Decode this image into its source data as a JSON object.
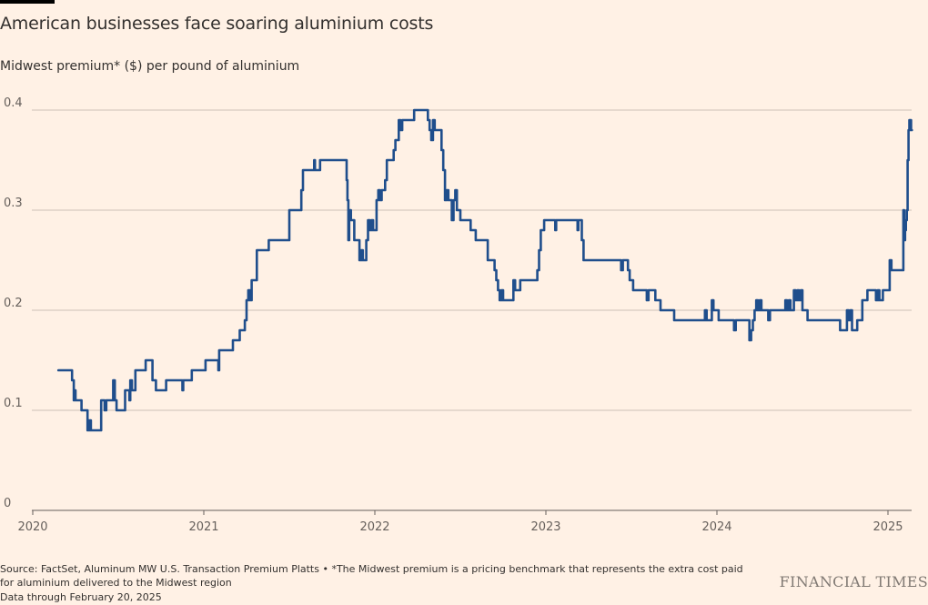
{
  "title": "American businesses face soaring aluminium costs",
  "subtitle": "Midwest premium* ($) per pound of aluminium",
  "source": "Source: FactSet, Aluminum MW U.S. Transaction Premium Platts • *The Midwest premium is a pricing benchmark that represents the extra cost paid for aluminium delivered to the Midwest region",
  "data_through": "Data through February 20, 2025",
  "brand": "FINANCIAL TIMES",
  "colors": {
    "background": "#fff1e5",
    "line": "#1f4e8c",
    "grid": "#ccc1b7",
    "axis": "#66605c"
  },
  "chart_data": {
    "type": "line",
    "xlim": [
      2020.0,
      2025.15
    ],
    "ylim": [
      0,
      0.4
    ],
    "x_ticks": [
      "2020",
      "2021",
      "2022",
      "2023",
      "2024",
      "2025"
    ],
    "y_ticks": [
      "0",
      "0.1",
      "0.2",
      "0.3",
      "0.4"
    ],
    "grid": true,
    "series": [
      {
        "points": [
          [
            2020.15,
            0.14
          ],
          [
            2020.22,
            0.14
          ],
          [
            2020.23,
            0.13
          ],
          [
            2020.24,
            0.11
          ],
          [
            2020.245,
            0.12
          ],
          [
            2020.25,
            0.11
          ],
          [
            2020.28,
            0.11
          ],
          [
            2020.285,
            0.1
          ],
          [
            2020.31,
            0.1
          ],
          [
            2020.32,
            0.08
          ],
          [
            2020.325,
            0.09
          ],
          [
            2020.33,
            0.08
          ],
          [
            2020.335,
            0.09
          ],
          [
            2020.34,
            0.08
          ],
          [
            2020.39,
            0.08
          ],
          [
            2020.4,
            0.11
          ],
          [
            2020.42,
            0.1
          ],
          [
            2020.43,
            0.11
          ],
          [
            2020.46,
            0.11
          ],
          [
            2020.47,
            0.13
          ],
          [
            2020.48,
            0.11
          ],
          [
            2020.49,
            0.1
          ],
          [
            2020.53,
            0.1
          ],
          [
            2020.54,
            0.12
          ],
          [
            2020.56,
            0.12
          ],
          [
            2020.565,
            0.11
          ],
          [
            2020.57,
            0.13
          ],
          [
            2020.58,
            0.12
          ],
          [
            2020.6,
            0.14
          ],
          [
            2020.65,
            0.14
          ],
          [
            2020.66,
            0.15
          ],
          [
            2020.69,
            0.15
          ],
          [
            2020.7,
            0.13
          ],
          [
            2020.72,
            0.12
          ],
          [
            2020.77,
            0.12
          ],
          [
            2020.78,
            0.13
          ],
          [
            2020.87,
            0.13
          ],
          [
            2020.875,
            0.12
          ],
          [
            2020.88,
            0.13
          ],
          [
            2020.92,
            0.13
          ],
          [
            2020.93,
            0.14
          ],
          [
            2021.0,
            0.14
          ],
          [
            2021.01,
            0.15
          ],
          [
            2021.08,
            0.15
          ],
          [
            2021.085,
            0.14
          ],
          [
            2021.09,
            0.16
          ],
          [
            2021.16,
            0.16
          ],
          [
            2021.17,
            0.17
          ],
          [
            2021.2,
            0.17
          ],
          [
            2021.21,
            0.18
          ],
          [
            2021.23,
            0.18
          ],
          [
            2021.24,
            0.19
          ],
          [
            2021.25,
            0.21
          ],
          [
            2021.26,
            0.22
          ],
          [
            2021.27,
            0.21
          ],
          [
            2021.28,
            0.23
          ],
          [
            2021.3,
            0.23
          ],
          [
            2021.31,
            0.26
          ],
          [
            2021.37,
            0.26
          ],
          [
            2021.38,
            0.27
          ],
          [
            2021.49,
            0.27
          ],
          [
            2021.5,
            0.3
          ],
          [
            2021.56,
            0.3
          ],
          [
            2021.57,
            0.32
          ],
          [
            2021.58,
            0.34
          ],
          [
            2021.64,
            0.34
          ],
          [
            2021.645,
            0.35
          ],
          [
            2021.65,
            0.34
          ],
          [
            2021.67,
            0.34
          ],
          [
            2021.68,
            0.35
          ],
          [
            2021.83,
            0.35
          ],
          [
            2021.835,
            0.33
          ],
          [
            2021.84,
            0.31
          ],
          [
            2021.845,
            0.27
          ],
          [
            2021.85,
            0.3
          ],
          [
            2021.86,
            0.29
          ],
          [
            2021.87,
            0.29
          ],
          [
            2021.88,
            0.27
          ],
          [
            2021.9,
            0.27
          ],
          [
            2021.91,
            0.25
          ],
          [
            2021.92,
            0.26
          ],
          [
            2021.93,
            0.25
          ],
          [
            2021.94,
            0.25
          ],
          [
            2021.95,
            0.27
          ],
          [
            2021.96,
            0.29
          ],
          [
            2021.97,
            0.28
          ],
          [
            2021.98,
            0.29
          ],
          [
            2021.99,
            0.28
          ],
          [
            2022.0,
            0.28
          ],
          [
            2022.01,
            0.31
          ],
          [
            2022.02,
            0.32
          ],
          [
            2022.03,
            0.31
          ],
          [
            2022.04,
            0.32
          ],
          [
            2022.05,
            0.32
          ],
          [
            2022.06,
            0.33
          ],
          [
            2022.07,
            0.35
          ],
          [
            2022.1,
            0.35
          ],
          [
            2022.11,
            0.36
          ],
          [
            2022.12,
            0.37
          ],
          [
            2022.13,
            0.37
          ],
          [
            2022.14,
            0.39
          ],
          [
            2022.15,
            0.38
          ],
          [
            2022.16,
            0.39
          ],
          [
            2022.22,
            0.39
          ],
          [
            2022.23,
            0.4
          ],
          [
            2022.3,
            0.4
          ],
          [
            2022.31,
            0.39
          ],
          [
            2022.32,
            0.38
          ],
          [
            2022.33,
            0.37
          ],
          [
            2022.34,
            0.39
          ],
          [
            2022.35,
            0.38
          ],
          [
            2022.38,
            0.38
          ],
          [
            2022.39,
            0.36
          ],
          [
            2022.4,
            0.34
          ],
          [
            2022.41,
            0.31
          ],
          [
            2022.42,
            0.32
          ],
          [
            2022.43,
            0.31
          ],
          [
            2022.44,
            0.31
          ],
          [
            2022.45,
            0.29
          ],
          [
            2022.46,
            0.31
          ],
          [
            2022.47,
            0.32
          ],
          [
            2022.48,
            0.3
          ],
          [
            2022.49,
            0.3
          ],
          [
            2022.5,
            0.29
          ],
          [
            2022.55,
            0.29
          ],
          [
            2022.56,
            0.28
          ],
          [
            2022.58,
            0.28
          ],
          [
            2022.59,
            0.27
          ],
          [
            2022.65,
            0.27
          ],
          [
            2022.66,
            0.25
          ],
          [
            2022.69,
            0.25
          ],
          [
            2022.7,
            0.24
          ],
          [
            2022.71,
            0.23
          ],
          [
            2022.72,
            0.22
          ],
          [
            2022.73,
            0.21
          ],
          [
            2022.74,
            0.22
          ],
          [
            2022.75,
            0.21
          ],
          [
            2022.8,
            0.21
          ],
          [
            2022.81,
            0.23
          ],
          [
            2022.82,
            0.22
          ],
          [
            2022.84,
            0.22
          ],
          [
            2022.85,
            0.23
          ],
          [
            2022.94,
            0.23
          ],
          [
            2022.95,
            0.24
          ],
          [
            2022.96,
            0.26
          ],
          [
            2022.97,
            0.28
          ],
          [
            2022.98,
            0.28
          ],
          [
            2022.99,
            0.29
          ],
          [
            2023.05,
            0.29
          ],
          [
            2023.055,
            0.28
          ],
          [
            2023.06,
            0.29
          ],
          [
            2023.18,
            0.29
          ],
          [
            2023.185,
            0.28
          ],
          [
            2023.19,
            0.29
          ],
          [
            2023.2,
            0.29
          ],
          [
            2023.21,
            0.27
          ],
          [
            2023.22,
            0.25
          ],
          [
            2023.43,
            0.25
          ],
          [
            2023.44,
            0.24
          ],
          [
            2023.45,
            0.25
          ],
          [
            2023.47,
            0.25
          ],
          [
            2023.48,
            0.24
          ],
          [
            2023.49,
            0.23
          ],
          [
            2023.5,
            0.23
          ],
          [
            2023.51,
            0.22
          ],
          [
            2023.58,
            0.22
          ],
          [
            2023.59,
            0.21
          ],
          [
            2023.6,
            0.22
          ],
          [
            2023.63,
            0.22
          ],
          [
            2023.64,
            0.21
          ],
          [
            2023.66,
            0.21
          ],
          [
            2023.67,
            0.2
          ],
          [
            2023.74,
            0.2
          ],
          [
            2023.75,
            0.19
          ],
          [
            2023.92,
            0.19
          ],
          [
            2023.93,
            0.2
          ],
          [
            2023.94,
            0.19
          ],
          [
            2023.96,
            0.19
          ],
          [
            2023.97,
            0.21
          ],
          [
            2023.98,
            0.2
          ],
          [
            2024.0,
            0.2
          ],
          [
            2024.01,
            0.19
          ],
          [
            2024.09,
            0.19
          ],
          [
            2024.1,
            0.18
          ],
          [
            2024.11,
            0.19
          ],
          [
            2024.18,
            0.19
          ],
          [
            2024.19,
            0.17
          ],
          [
            2024.2,
            0.18
          ],
          [
            2024.21,
            0.19
          ],
          [
            2024.22,
            0.2
          ],
          [
            2024.23,
            0.21
          ],
          [
            2024.24,
            0.2
          ],
          [
            2024.25,
            0.21
          ],
          [
            2024.26,
            0.2
          ],
          [
            2024.29,
            0.2
          ],
          [
            2024.3,
            0.19
          ],
          [
            2024.31,
            0.2
          ],
          [
            2024.39,
            0.2
          ],
          [
            2024.4,
            0.21
          ],
          [
            2024.41,
            0.2
          ],
          [
            2024.42,
            0.21
          ],
          [
            2024.43,
            0.2
          ],
          [
            2024.44,
            0.2
          ],
          [
            2024.45,
            0.22
          ],
          [
            2024.46,
            0.21
          ],
          [
            2024.47,
            0.22
          ],
          [
            2024.48,
            0.21
          ],
          [
            2024.49,
            0.22
          ],
          [
            2024.5,
            0.2
          ],
          [
            2024.52,
            0.2
          ],
          [
            2024.53,
            0.19
          ],
          [
            2024.71,
            0.19
          ],
          [
            2024.72,
            0.18
          ],
          [
            2024.75,
            0.18
          ],
          [
            2024.76,
            0.2
          ],
          [
            2024.77,
            0.19
          ],
          [
            2024.78,
            0.2
          ],
          [
            2024.79,
            0.18
          ],
          [
            2024.81,
            0.18
          ],
          [
            2024.82,
            0.19
          ],
          [
            2024.84,
            0.19
          ],
          [
            2024.85,
            0.21
          ],
          [
            2024.87,
            0.21
          ],
          [
            2024.88,
            0.22
          ],
          [
            2024.92,
            0.22
          ],
          [
            2024.93,
            0.21
          ],
          [
            2024.94,
            0.22
          ],
          [
            2024.95,
            0.21
          ],
          [
            2024.96,
            0.21
          ],
          [
            2024.97,
            0.22
          ],
          [
            2025.0,
            0.22
          ],
          [
            2025.01,
            0.25
          ],
          [
            2025.02,
            0.24
          ],
          [
            2025.08,
            0.24
          ],
          [
            2025.09,
            0.3
          ],
          [
            2025.095,
            0.27
          ],
          [
            2025.1,
            0.28
          ],
          [
            2025.105,
            0.29
          ],
          [
            2025.11,
            0.3
          ],
          [
            2025.115,
            0.35
          ],
          [
            2025.12,
            0.38
          ],
          [
            2025.125,
            0.39
          ],
          [
            2025.13,
            0.39
          ],
          [
            2025.135,
            0.38
          ],
          [
            2025.14,
            0.38
          ]
        ]
      }
    ]
  }
}
